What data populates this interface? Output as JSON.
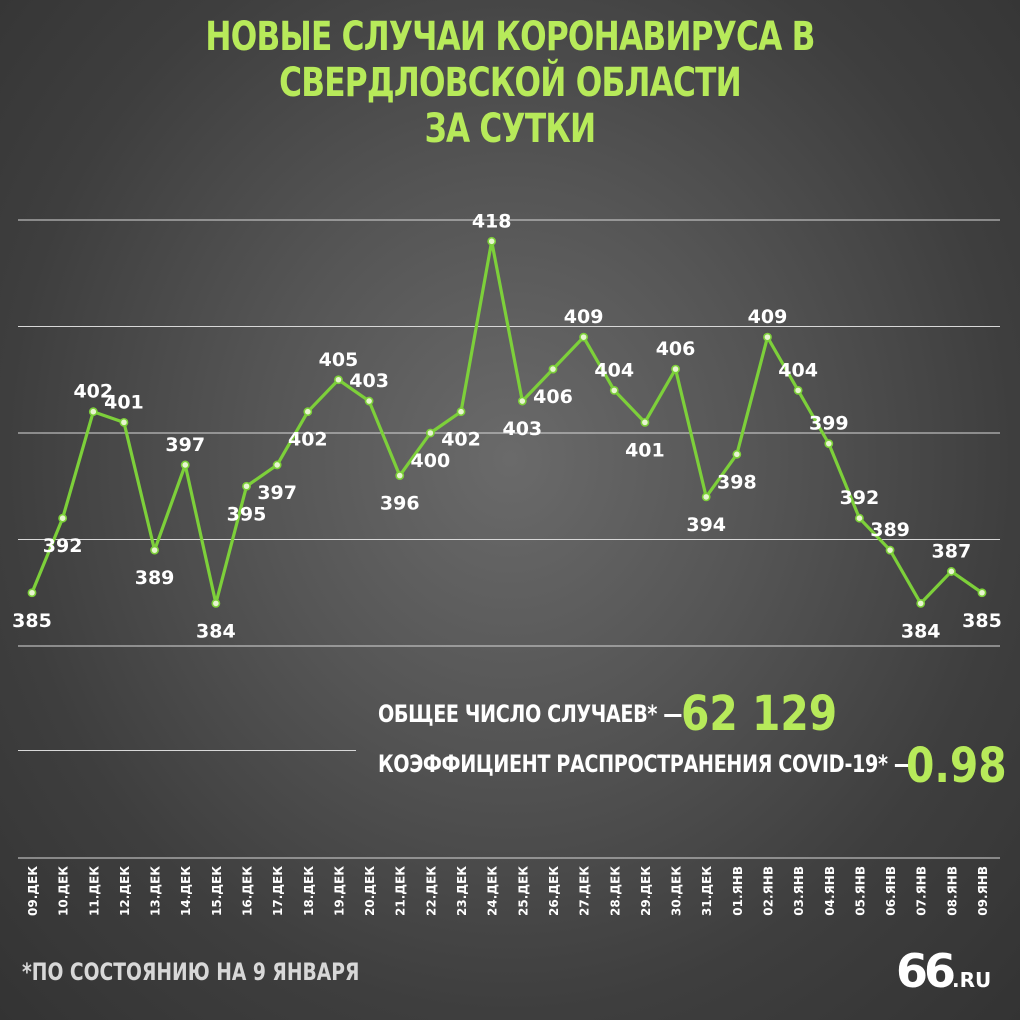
{
  "title": {
    "line1": "НОВЫЕ СЛУЧАИ КОРОНАВИРУСА В СВЕРДЛОВСКОЙ ОБЛАСТИ",
    "line2": "ЗА СУТКИ"
  },
  "chart_data": {
    "type": "line",
    "title": "НОВЫЕ СЛУЧАИ КОРОНАВИРУСА В СВЕРДЛОВСКОЙ ОБЛАСТИ ЗА СУТКИ",
    "categories": [
      "09.ДЕК",
      "10.ДЕК",
      "11.ДЕК",
      "12.ДЕК",
      "13.ДЕК",
      "14.ДЕК",
      "15.ДЕК",
      "16.ДЕК",
      "17.ДЕК",
      "18.ДЕК",
      "19.ДЕК",
      "20.ДЕК",
      "21.ДЕК",
      "22.ДЕК",
      "23.ДЕК",
      "24.ДЕК",
      "25.ДЕК",
      "26.ДЕК",
      "27.ДЕК",
      "28.ДЕК",
      "29.ДЕК",
      "30.ДЕК",
      "31.ДЕК",
      "01.ЯНВ",
      "02.ЯНВ",
      "03.ЯНВ",
      "04.ЯНВ",
      "05.ЯНВ",
      "06.ЯНВ",
      "07.ЯНВ",
      "08.ЯНВ",
      "09.ЯНВ"
    ],
    "values": [
      385,
      392,
      402,
      401,
      389,
      397,
      384,
      395,
      397,
      402,
      405,
      403,
      396,
      400,
      402,
      418,
      403,
      406,
      409,
      404,
      401,
      406,
      394,
      398,
      409,
      404,
      399,
      392,
      389,
      384,
      387,
      385
    ],
    "ylim": [
      380,
      420
    ],
    "grid": true,
    "legend": "none",
    "colors": {
      "line": "#7dd03a",
      "marker_fill": "#e8f5d0",
      "grid": "#d8d8d8",
      "label": "#ffffff"
    }
  },
  "summary": {
    "total_label": "ОБЩЕЕ ЧИСЛО СЛУЧАЕВ* —",
    "total_value": "62 129",
    "rt_label": "КОЭФФИЦИЕНТ РАСПРОСТРАНЕНИЯ COVID-19* —",
    "rt_value": "0.98"
  },
  "footnote": "*ПО СОСТОЯНИЮ НА 9 ЯНВАРЯ",
  "logo": {
    "number": "66",
    "domain": ".RU"
  },
  "colors": {
    "accent": "#b7ea5a",
    "text": "#ffffff"
  }
}
